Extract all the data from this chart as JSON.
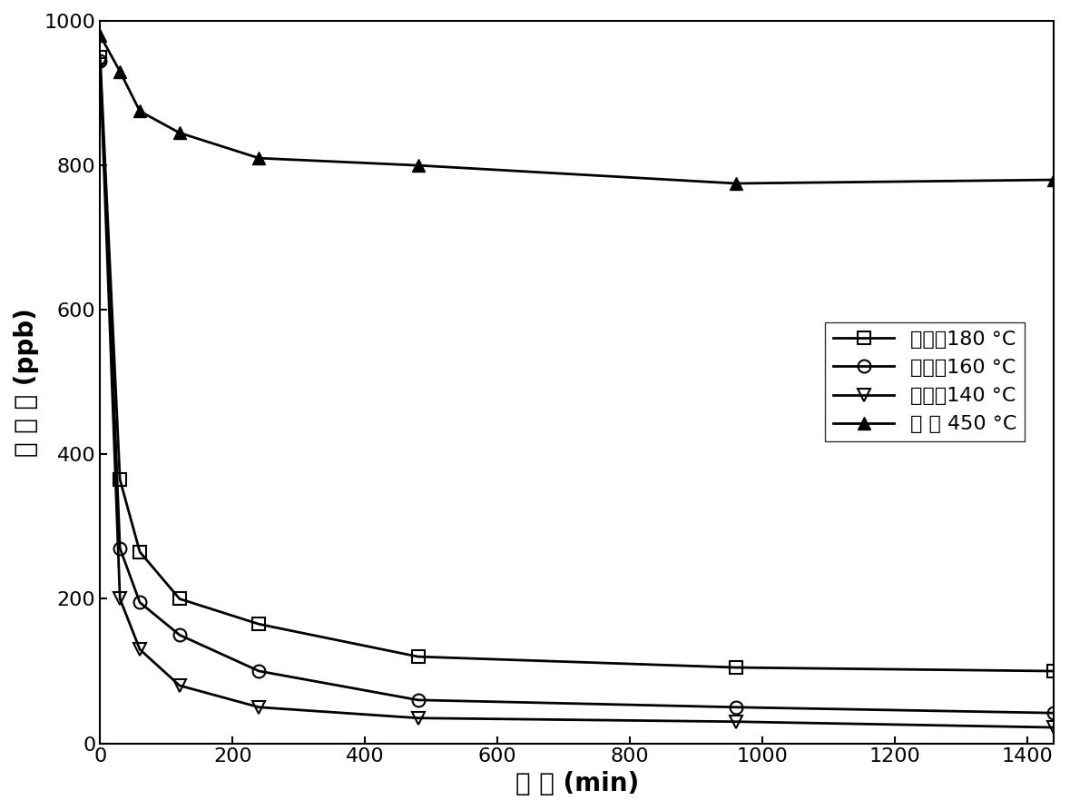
{
  "series": [
    {
      "label": "溶剂热180 °C",
      "marker": "s",
      "fillstyle": "none",
      "x": [
        0,
        30,
        60,
        120,
        240,
        480,
        960,
        1440
      ],
      "y": [
        950,
        365,
        265,
        200,
        165,
        120,
        105,
        100
      ]
    },
    {
      "label": "溶剂热160 °C",
      "marker": "o",
      "fillstyle": "none",
      "x": [
        0,
        30,
        60,
        120,
        240,
        480,
        960,
        1440
      ],
      "y": [
        945,
        270,
        195,
        150,
        100,
        60,
        50,
        42
      ]
    },
    {
      "label": "溶剂热140 °C",
      "marker": "v",
      "fillstyle": "none",
      "x": [
        0,
        30,
        60,
        120,
        240,
        480,
        960,
        1440
      ],
      "y": [
        940,
        200,
        130,
        80,
        50,
        35,
        30,
        22
      ]
    },
    {
      "label": "焙 烧 450 °C",
      "marker": "^",
      "fillstyle": "full",
      "x": [
        0,
        30,
        60,
        120,
        240,
        480,
        960,
        1440
      ],
      "y": [
        980,
        930,
        875,
        845,
        810,
        800,
        775,
        780
      ]
    }
  ],
  "xlabel": "时 间 (min)",
  "ylabel": "砷 浓 度 (ppb)",
  "xlim": [
    0,
    1440
  ],
  "ylim": [
    0,
    1000
  ],
  "xticks": [
    0,
    200,
    400,
    600,
    800,
    1000,
    1200,
    1400
  ],
  "yticks": [
    0,
    200,
    400,
    600,
    800,
    1000
  ],
  "line_color": "#000000",
  "background_color": "#ffffff",
  "legend_loc": "center right",
  "fontsize_label": 20,
  "fontsize_tick": 16,
  "fontsize_legend": 16,
  "linewidth": 2.0,
  "markersize": 10
}
